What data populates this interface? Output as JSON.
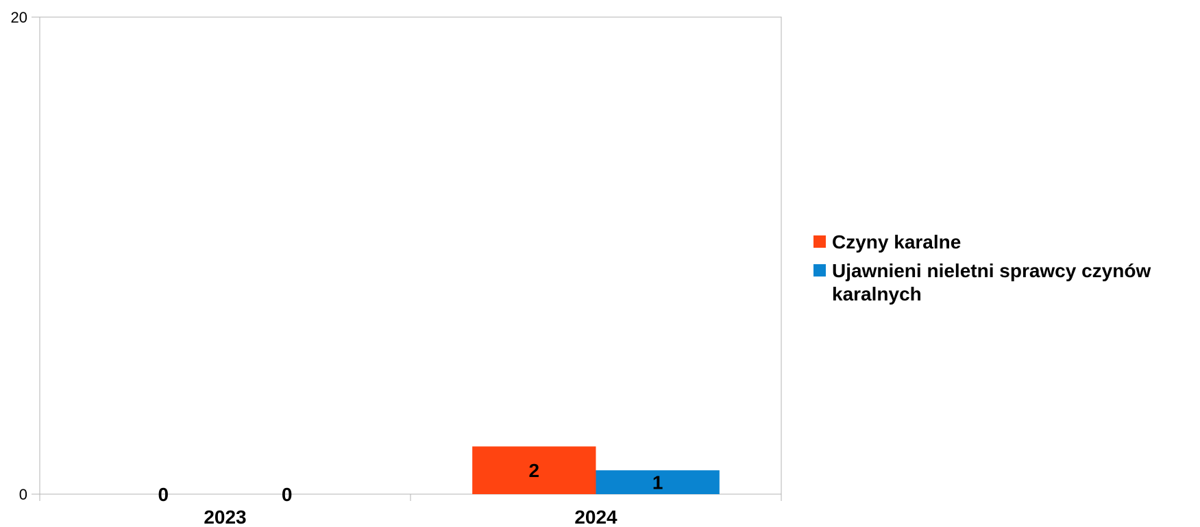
{
  "chart_data": {
    "type": "bar",
    "title": "",
    "xlabel": "",
    "ylabel": "",
    "categories": [
      "2023",
      "2024"
    ],
    "series": [
      {
        "name": "Czyny karalne",
        "color": "#FF4411",
        "values": [
          0,
          2
        ],
        "data_labels": [
          "0",
          "2"
        ]
      },
      {
        "name": "Ujawnieni nieletni sprawcy czynów karalnych",
        "color": "#0A84D0",
        "values": [
          0,
          1
        ],
        "data_labels": [
          "0",
          "1"
        ]
      }
    ],
    "ylim": [
      0,
      20
    ],
    "y_ticks": [
      {
        "value": 0,
        "label": "0"
      },
      {
        "value": 20,
        "label": "20"
      }
    ],
    "grid": false,
    "legend_position": "right",
    "legend_entries": [
      {
        "lines": [
          "Czyny karalne"
        ],
        "color": "#FF4411"
      },
      {
        "lines": [
          "Ujawnieni nieletni sprawcy czynów",
          "karalnych"
        ],
        "color": "#0A84D0"
      }
    ]
  }
}
